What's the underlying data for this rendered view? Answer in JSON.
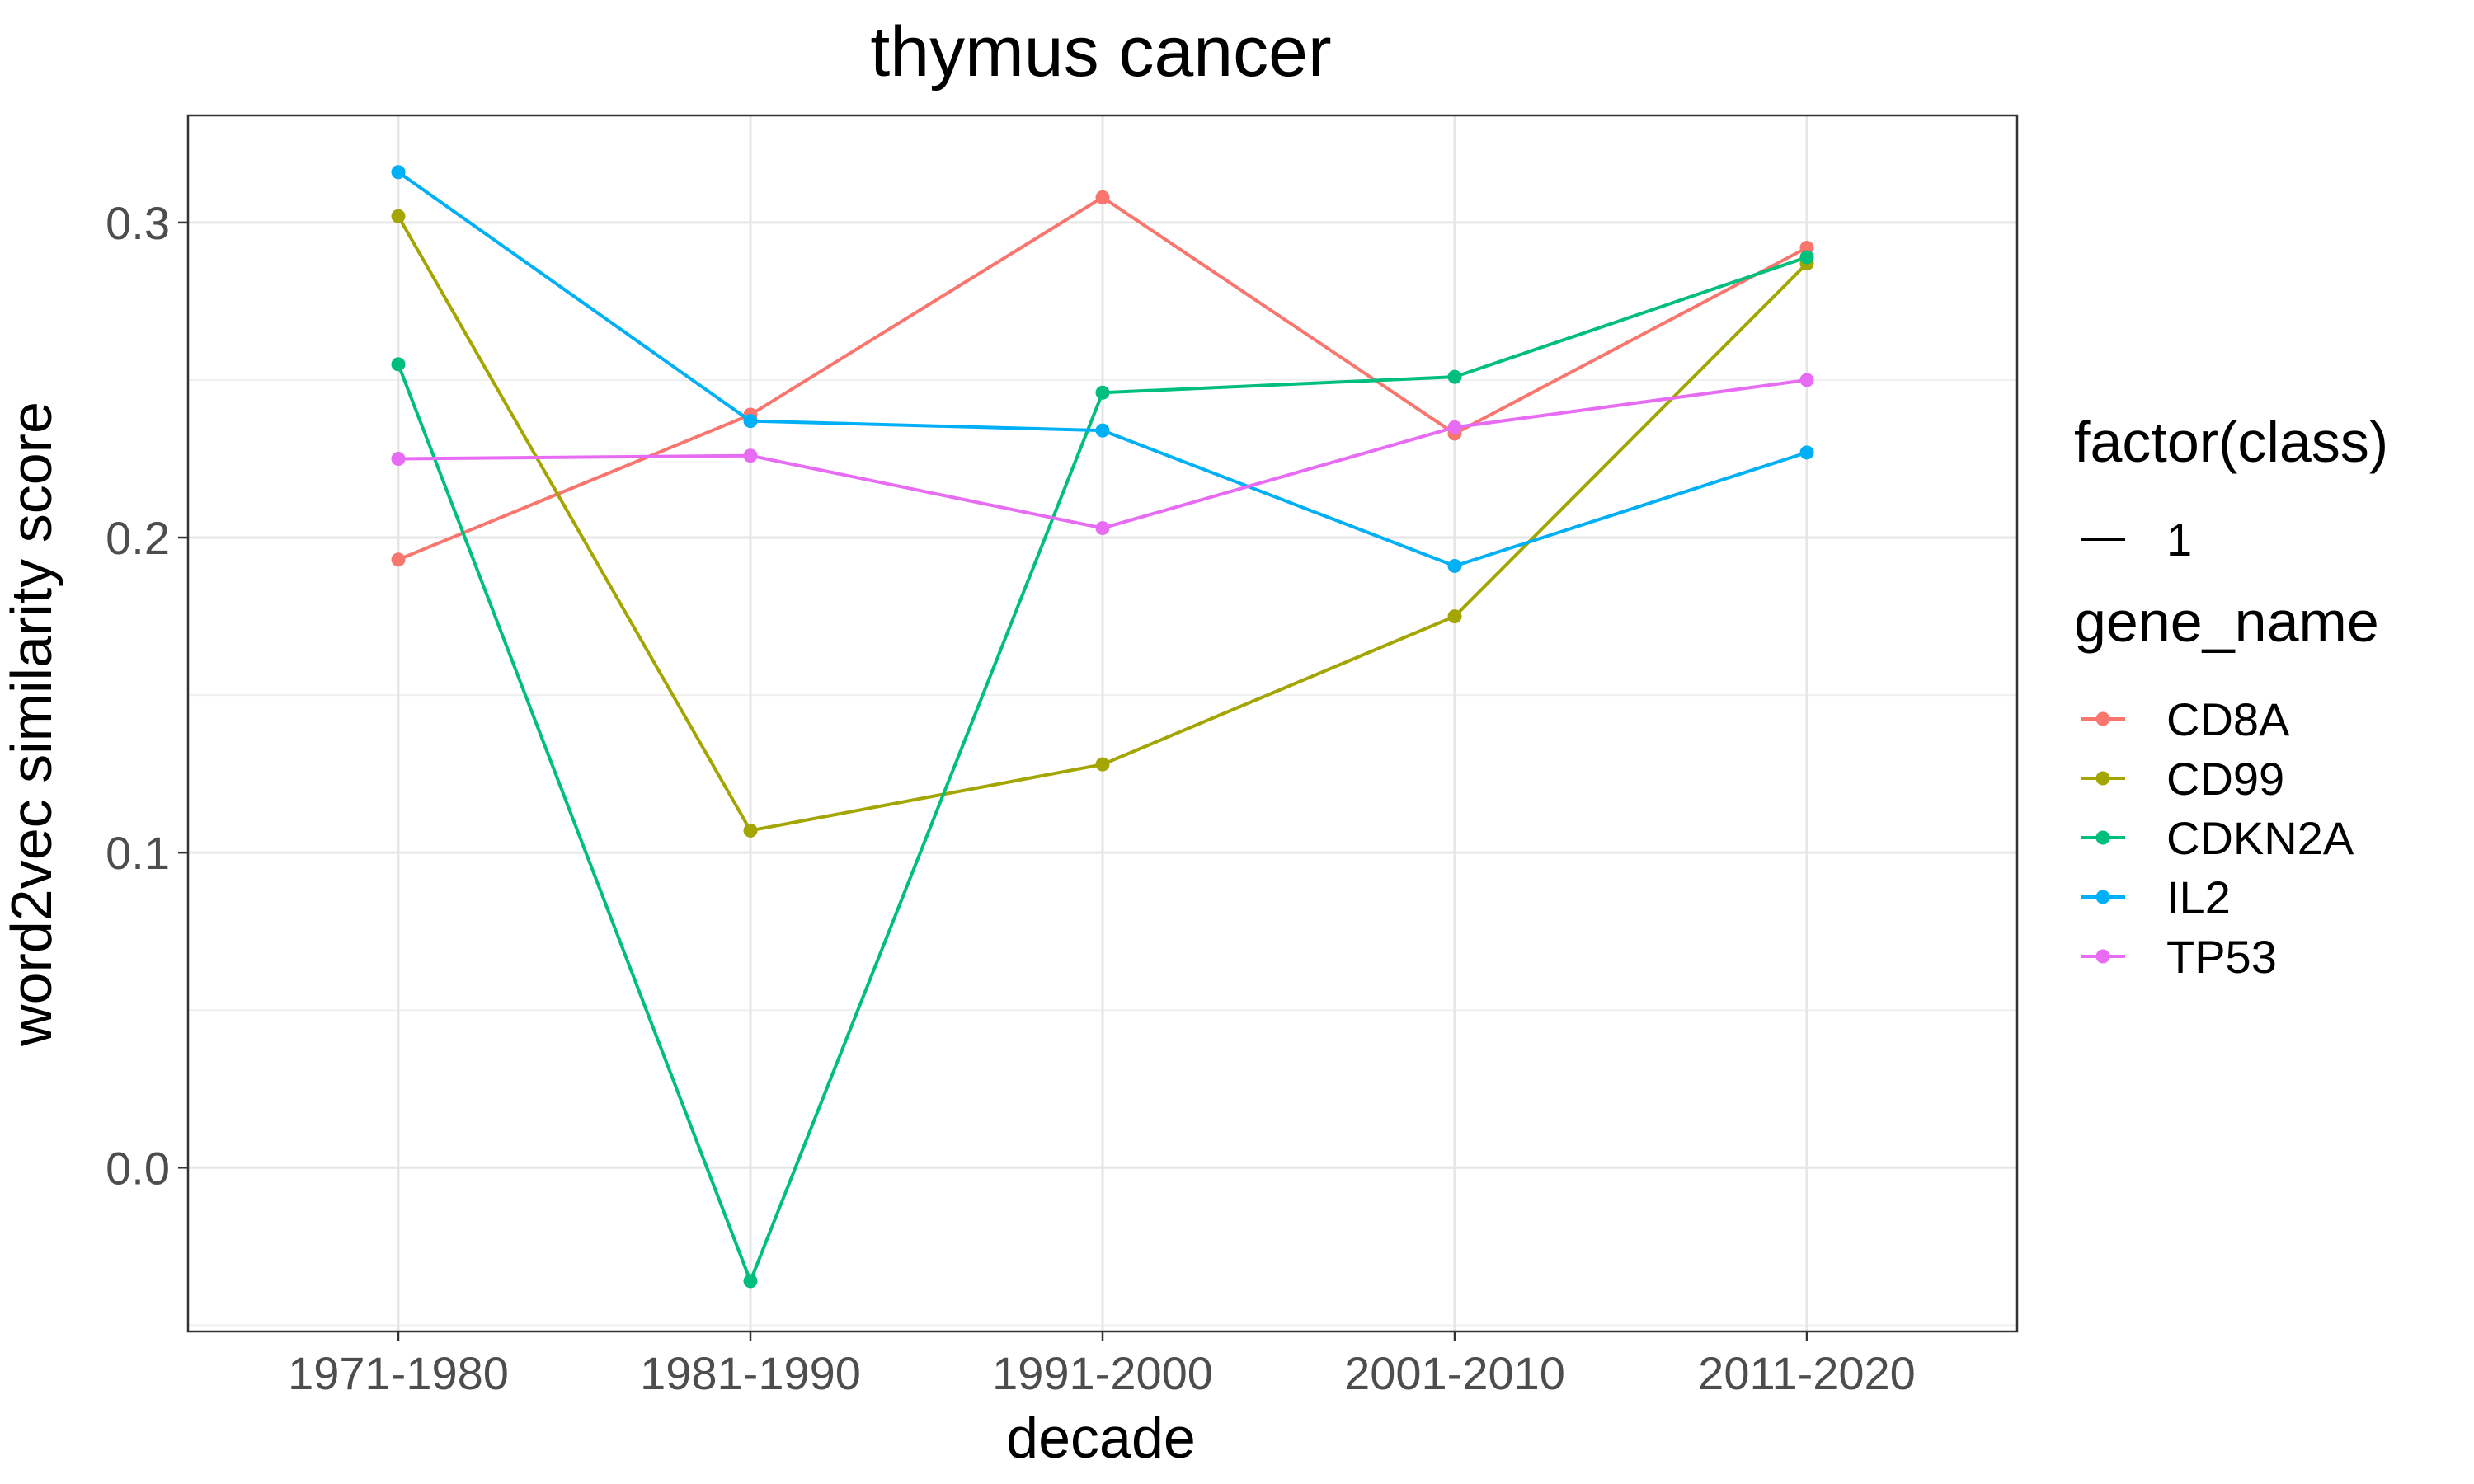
{
  "chart_data": {
    "type": "line",
    "title": "thymus cancer",
    "xlabel": "decade",
    "ylabel": "word2vec similarity score",
    "categories": [
      "1971-1980",
      "1981-1990",
      "1991-2000",
      "2001-2010",
      "2011-2020"
    ],
    "ylim": [
      -0.052,
      0.334
    ],
    "yticks": [
      0.0,
      0.1,
      0.2,
      0.3
    ],
    "ytick_labels": [
      "0.0",
      "0.1",
      "0.2",
      "0.3"
    ],
    "grid": true,
    "legend_position": "right",
    "legends": [
      {
        "title": "factor(class)",
        "entries": [
          {
            "label": "1",
            "kind": "line",
            "color": "#000000"
          }
        ]
      },
      {
        "title": "gene_name",
        "entries": [
          {
            "label": "CD8A",
            "kind": "point-line",
            "color": "#F8766D"
          },
          {
            "label": "CD99",
            "kind": "point-line",
            "color": "#A3A500"
          },
          {
            "label": "CDKN2A",
            "kind": "point-line",
            "color": "#00BF7D"
          },
          {
            "label": "IL2",
            "kind": "point-line",
            "color": "#00B0F6"
          },
          {
            "label": "TP53",
            "kind": "point-line",
            "color": "#E76BF3"
          }
        ]
      }
    ],
    "series": [
      {
        "name": "CD8A",
        "color": "#F8766D",
        "values": [
          0.193,
          0.239,
          0.308,
          0.233,
          0.292
        ]
      },
      {
        "name": "CD99",
        "color": "#A3A500",
        "values": [
          0.302,
          0.107,
          0.128,
          0.175,
          0.287
        ]
      },
      {
        "name": "CDKN2A",
        "color": "#00BF7D",
        "values": [
          0.255,
          -0.036,
          0.246,
          0.251,
          0.289
        ]
      },
      {
        "name": "IL2",
        "color": "#00B0F6",
        "values": [
          0.316,
          0.237,
          0.234,
          0.191,
          0.227
        ]
      },
      {
        "name": "TP53",
        "color": "#E76BF3",
        "values": [
          0.225,
          0.226,
          0.203,
          0.235,
          0.25
        ]
      }
    ]
  }
}
